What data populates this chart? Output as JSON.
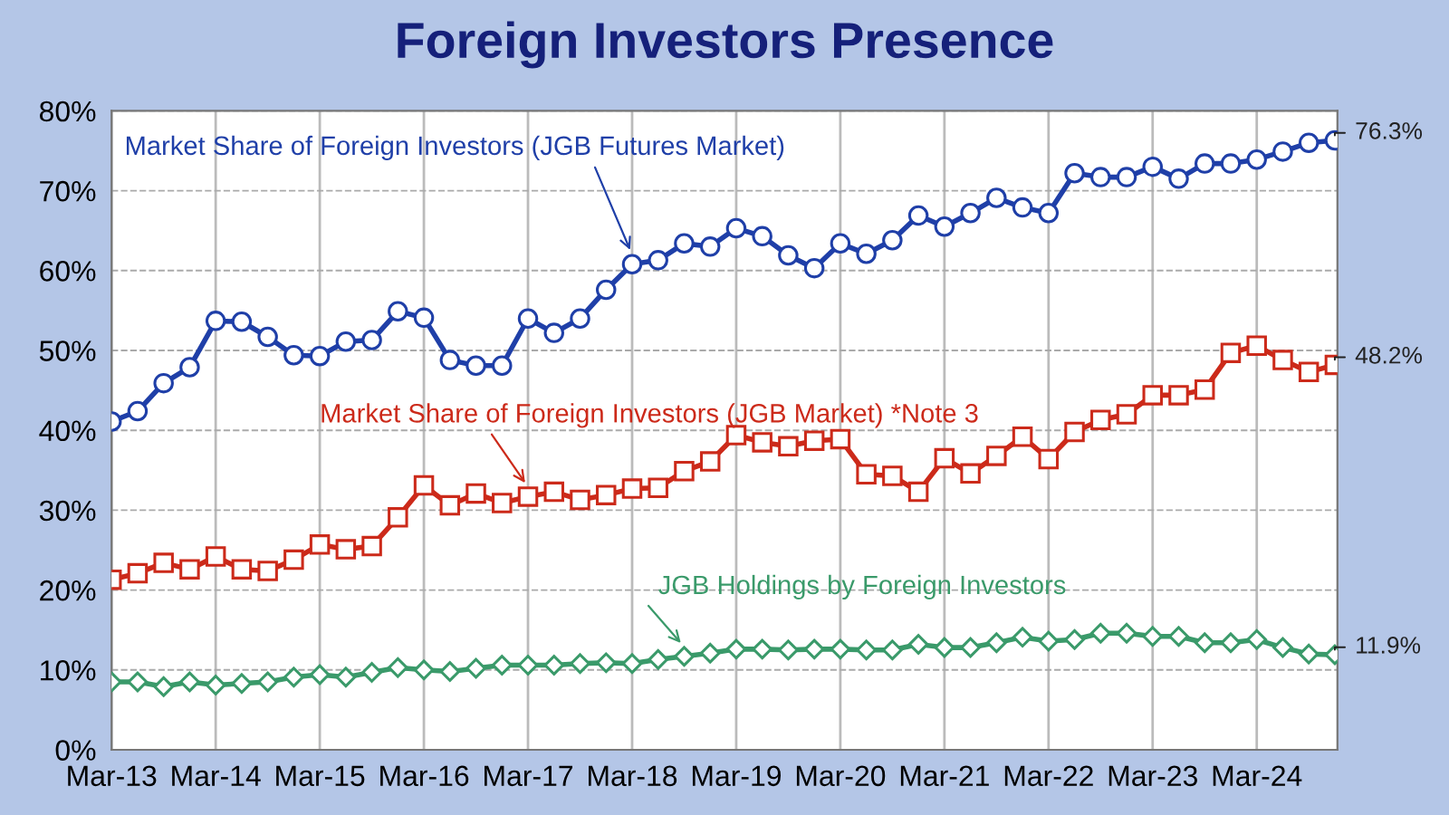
{
  "chart_data": {
    "type": "line",
    "title": "Foreign Investors Presence",
    "categories": [
      "Mar-13",
      null,
      null,
      null,
      "Mar-14",
      null,
      null,
      null,
      "Mar-15",
      null,
      null,
      null,
      "Mar-16",
      null,
      null,
      null,
      "Mar-17",
      null,
      null,
      null,
      "Mar-18",
      null,
      null,
      null,
      "Mar-19",
      null,
      null,
      null,
      "Mar-20",
      null,
      null,
      null,
      "Mar-21",
      null,
      null,
      null,
      "Mar-22",
      null,
      null,
      null,
      "Mar-23",
      null,
      null,
      null,
      "Mar-24",
      null,
      null,
      null
    ],
    "series": [
      {
        "name": "Market Share of Foreign Investors (JGB Futures Market)",
        "color": "#1f3fa8",
        "marker": "circle",
        "values": [
          41.1,
          42.4,
          45.9,
          47.9,
          53.7,
          53.6,
          51.7,
          49.4,
          49.3,
          51.1,
          51.3,
          54.9,
          54.1,
          48.8,
          48.1,
          48.1,
          54.0,
          52.2,
          54.0,
          57.6,
          60.8,
          61.3,
          63.4,
          63.0,
          65.3,
          64.3,
          61.9,
          60.3,
          63.4,
          62.1,
          63.8,
          66.9,
          65.5,
          67.2,
          69.1,
          67.9,
          67.2,
          72.2,
          71.7,
          71.7,
          73.0,
          71.5,
          73.4,
          73.4,
          73.9,
          74.9,
          76.0,
          76.3
        ],
        "value_labels": [
          null,
          null,
          null,
          null,
          null,
          null,
          null,
          null,
          null,
          null,
          null,
          null,
          null,
          null,
          null,
          null,
          null,
          null,
          null,
          null,
          null,
          null,
          null,
          null,
          null,
          null,
          null,
          null,
          null,
          null,
          null,
          null,
          null,
          null,
          null,
          null,
          null,
          null,
          null,
          null,
          null,
          null,
          null,
          null,
          null,
          null,
          null,
          "76.3%"
        ]
      },
      {
        "name": "Market Share of Foreign Investors (JGB Market) *Note 3",
        "color": "#cc2a1a",
        "marker": "square",
        "values": [
          21.3,
          22.1,
          23.4,
          22.6,
          24.2,
          22.6,
          22.4,
          23.8,
          25.7,
          25.1,
          25.5,
          29.1,
          33.1,
          30.6,
          32.1,
          30.9,
          31.7,
          32.3,
          31.3,
          31.9,
          32.7,
          32.8,
          34.9,
          36.1,
          39.4,
          38.5,
          38.0,
          38.7,
          38.9,
          34.5,
          34.3,
          32.3,
          36.5,
          34.6,
          36.8,
          39.2,
          36.4,
          39.8,
          41.3,
          42.0,
          44.4,
          44.4,
          45.1,
          49.7,
          50.6,
          48.8,
          47.3,
          48.2
        ],
        "value_labels": [
          null,
          null,
          null,
          null,
          null,
          null,
          null,
          null,
          null,
          null,
          null,
          null,
          null,
          null,
          null,
          null,
          null,
          null,
          null,
          null,
          null,
          null,
          null,
          null,
          null,
          null,
          null,
          null,
          null,
          null,
          null,
          null,
          null,
          null,
          null,
          null,
          null,
          null,
          null,
          null,
          null,
          null,
          null,
          null,
          null,
          null,
          null,
          "48.2%"
        ]
      },
      {
        "name": "JGB Holdings by Foreign Investors",
        "color": "#3a9a6a",
        "marker": "diamond",
        "values": [
          8.5,
          8.5,
          7.9,
          8.5,
          8.1,
          8.3,
          8.5,
          9.1,
          9.4,
          9.1,
          9.7,
          10.3,
          10.0,
          9.8,
          10.2,
          10.6,
          10.6,
          10.6,
          10.8,
          10.9,
          10.8,
          11.3,
          11.7,
          12.1,
          12.6,
          12.6,
          12.5,
          12.6,
          12.6,
          12.5,
          12.5,
          13.2,
          12.8,
          12.8,
          13.4,
          14.1,
          13.6,
          13.8,
          14.6,
          14.6,
          14.2,
          14.2,
          13.4,
          13.4,
          13.8,
          12.8,
          12.0,
          11.9
        ],
        "value_labels": [
          null,
          null,
          null,
          null,
          null,
          null,
          null,
          null,
          null,
          null,
          null,
          null,
          null,
          null,
          null,
          null,
          null,
          null,
          null,
          null,
          null,
          null,
          null,
          null,
          null,
          null,
          null,
          null,
          null,
          null,
          null,
          null,
          null,
          null,
          null,
          null,
          null,
          null,
          null,
          null,
          null,
          null,
          null,
          null,
          null,
          null,
          null,
          "11.9%"
        ]
      }
    ],
    "ylim": [
      0,
      80
    ],
    "yticks": [
      {
        "value": 0,
        "label": "0%"
      },
      {
        "value": 10,
        "label": "10%"
      },
      {
        "value": 20,
        "label": "20%"
      },
      {
        "value": 30,
        "label": "30%"
      },
      {
        "value": 40,
        "label": "40%"
      },
      {
        "value": 50,
        "label": "50%"
      },
      {
        "value": 60,
        "label": "60%"
      },
      {
        "value": 70,
        "label": "70%"
      },
      {
        "value": 80,
        "label": "80%"
      }
    ],
    "grid": true,
    "legend": false,
    "line_style": "solid"
  }
}
